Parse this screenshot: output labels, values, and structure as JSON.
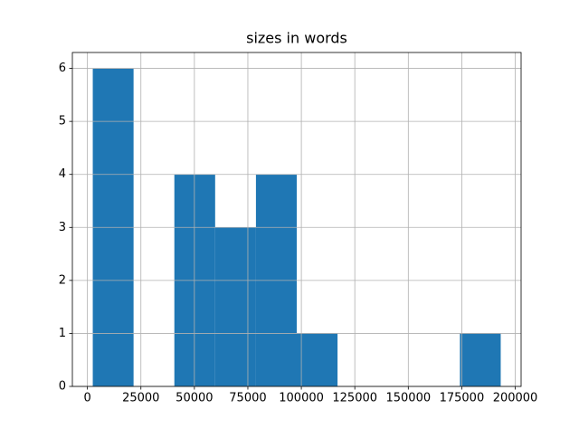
{
  "chart_data": {
    "type": "histogram",
    "title": "sizes in words",
    "bins": [
      2500,
      21570,
      40640,
      59710,
      78780,
      97850,
      116920,
      135990,
      155060,
      174130,
      193200
    ],
    "values": [
      6,
      0,
      4,
      3,
      4,
      1,
      0,
      0,
      0,
      1
    ],
    "color": "#1f77b4",
    "xlim": [
      -7035,
      202735
    ],
    "xticks": [
      0,
      25000,
      50000,
      75000,
      100000,
      125000,
      150000,
      175000,
      200000
    ],
    "ylim": [
      0,
      6.3
    ],
    "yticks": [
      0,
      1,
      2,
      3,
      4,
      5,
      6
    ],
    "grid": true
  }
}
